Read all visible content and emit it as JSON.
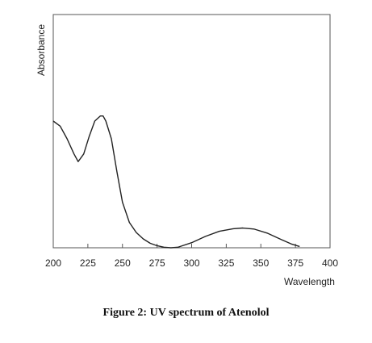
{
  "caption": "Figure 2: UV spectrum of Atenolol",
  "chart_data": {
    "type": "line",
    "xlabel": "Wavelength",
    "ylabel": "Absorbance",
    "xlim": [
      200,
      400
    ],
    "x_ticks": [
      200,
      225,
      250,
      275,
      300,
      325,
      350,
      375,
      400
    ],
    "ylim": [
      0,
      1
    ],
    "grid": false,
    "colors": {
      "line": "#222222",
      "axes": "#555555"
    },
    "series": [
      {
        "x": [
          200,
          205,
          210,
          215,
          218,
          222,
          226,
          230,
          234,
          236,
          238,
          242,
          246,
          250,
          255,
          260,
          265,
          270,
          275,
          280,
          285,
          290,
          300,
          310,
          320,
          330,
          337,
          345,
          355,
          365,
          372,
          378
        ],
        "y": [
          0.5,
          0.48,
          0.43,
          0.37,
          0.34,
          0.37,
          0.44,
          0.5,
          0.52,
          0.52,
          0.5,
          0.43,
          0.3,
          0.18,
          0.1,
          0.06,
          0.035,
          0.018,
          0.008,
          0.002,
          0.0,
          0.002,
          0.02,
          0.045,
          0.065,
          0.075,
          0.078,
          0.074,
          0.057,
          0.032,
          0.015,
          0.005
        ]
      }
    ]
  }
}
